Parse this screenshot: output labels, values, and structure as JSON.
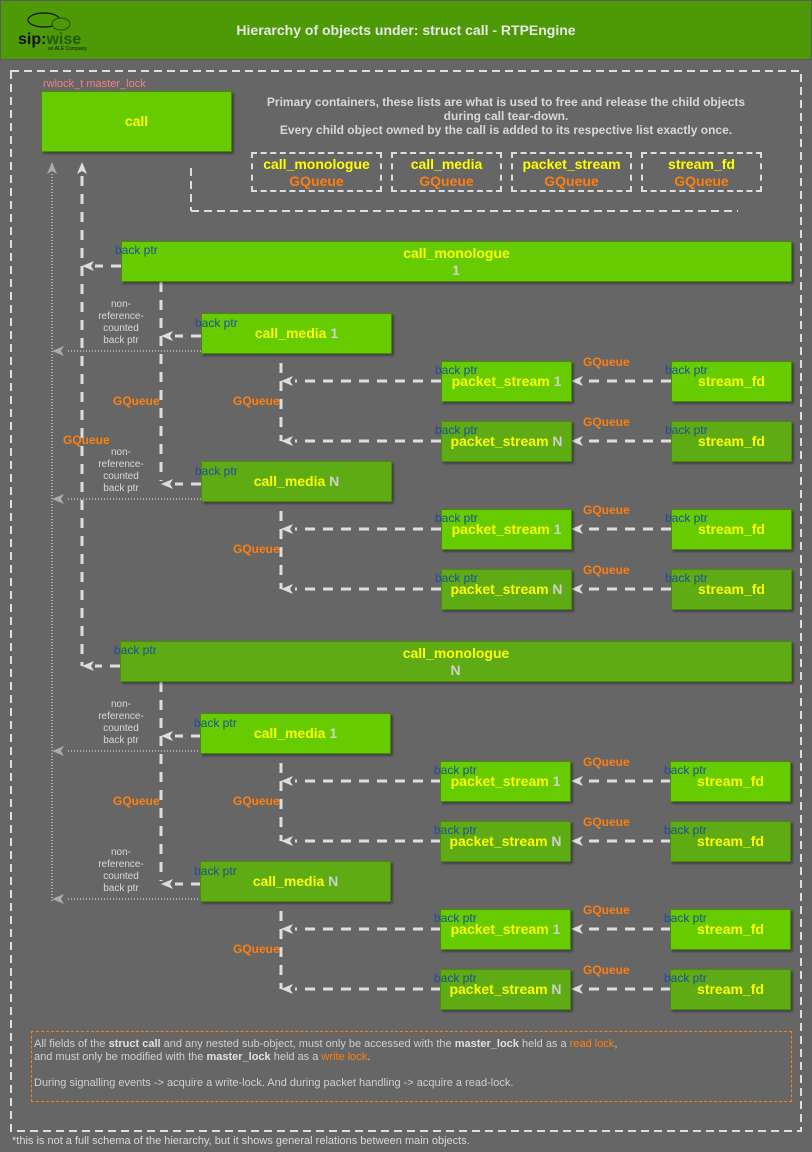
{
  "header": {
    "title": "Hierarchy of objects under: struct call - RTPEngine",
    "logo_text": "sip:wise",
    "logo_sub": "an ALE Company",
    "color": "#4e9a06"
  },
  "call": {
    "name": "call",
    "lock": "rwlock_t master_lock"
  },
  "primary_text": [
    "Primary containers, these lists are what is used to free and release the child objects",
    "during call tear-down.",
    "Every child object owned by the call is added to its respective list exactly once."
  ],
  "containers": [
    {
      "name": "call_monologue",
      "type": "GQueue"
    },
    {
      "name": "call_media",
      "type": "GQueue"
    },
    {
      "name": "packet_stream",
      "type": "GQueue"
    },
    {
      "name": "stream_fd",
      "type": "GQueue"
    }
  ],
  "colors": {
    "box": "#66cc00",
    "box_dark": "#5fab14",
    "label": "#ffff00",
    "queue": "#ff7f0e",
    "back_ptr": "#1a4e9e",
    "lock": "#f08080"
  },
  "call_queue_label": "GQueue",
  "monologues": [
    {
      "name": "call_monologue",
      "index": "1",
      "back_ptr": "back ptr",
      "queue_label": "GQueue",
      "media": [
        {
          "name": "call_media",
          "index": "1",
          "back_ptr": "back ptr",
          "nonref": [
            "non-",
            "reference-",
            "counted",
            "back ptr"
          ],
          "queue_label": "GQueue",
          "streams": [
            {
              "name": "packet_stream",
              "index": "1",
              "back_ptr": "back ptr",
              "queue_label": "GQueue",
              "fd": {
                "name": "stream_fd",
                "back_ptr": "back ptr"
              }
            },
            {
              "name": "packet_stream",
              "index": "N",
              "back_ptr": "back ptr",
              "queue_label": "GQueue",
              "fd": {
                "name": "stream_fd",
                "back_ptr": "back ptr"
              }
            }
          ]
        },
        {
          "name": "call_media",
          "index": "N",
          "back_ptr": "back ptr",
          "nonref": [
            "non-",
            "reference-",
            "counted",
            "back ptr"
          ],
          "queue_label": "GQueue",
          "streams": [
            {
              "name": "packet_stream",
              "index": "1",
              "back_ptr": "back ptr",
              "queue_label": "GQueue",
              "fd": {
                "name": "stream_fd",
                "back_ptr": "back ptr"
              }
            },
            {
              "name": "packet_stream",
              "index": "N",
              "back_ptr": "back ptr",
              "queue_label": "GQueue",
              "fd": {
                "name": "stream_fd",
                "back_ptr": "back ptr"
              }
            }
          ]
        }
      ]
    },
    {
      "name": "call_monologue",
      "index": "N",
      "back_ptr": "back ptr",
      "queue_label": "GQueue",
      "media": [
        {
          "name": "call_media",
          "index": "1",
          "back_ptr": "back ptr",
          "nonref": [
            "non-",
            "reference-",
            "counted",
            "back ptr"
          ],
          "queue_label": "GQueue",
          "streams": [
            {
              "name": "packet_stream",
              "index": "1",
              "back_ptr": "back ptr",
              "queue_label": "GQueue",
              "fd": {
                "name": "stream_fd",
                "back_ptr": "back ptr"
              }
            },
            {
              "name": "packet_stream",
              "index": "N",
              "back_ptr": "back ptr",
              "queue_label": "GQueue",
              "fd": {
                "name": "stream_fd",
                "back_ptr": "back ptr"
              }
            }
          ]
        },
        {
          "name": "call_media",
          "index": "N",
          "back_ptr": "back ptr",
          "nonref": [
            "non-",
            "reference-",
            "counted",
            "back ptr"
          ],
          "queue_label": "GQueue",
          "streams": [
            {
              "name": "packet_stream",
              "index": "1",
              "back_ptr": "back ptr",
              "queue_label": "GQueue",
              "fd": {
                "name": "stream_fd",
                "back_ptr": "back ptr"
              }
            },
            {
              "name": "packet_stream",
              "index": "N",
              "back_ptr": "back ptr",
              "queue_label": "GQueue",
              "fd": {
                "name": "stream_fd",
                "back_ptr": "back ptr"
              }
            }
          ]
        }
      ]
    }
  ],
  "note": {
    "line1": {
      "a": "All fields of the ",
      "b": "struct call",
      "c": " and any nested sub-object, must only be accessed with the ",
      "d": "master_lock",
      "e": " held as a ",
      "f": "read lock",
      "g": ","
    },
    "line2": {
      "a": "and must only be modified with the ",
      "b": "master_lock",
      "c": " held as a ",
      "d": "write lock",
      "e": "."
    },
    "line3": "During signalling events -> acquire a write-lock. And during packet handling -> acquire a read-lock."
  },
  "footnote": "*this is not a full schema of the hierarchy, but it shows general relations between main objects."
}
